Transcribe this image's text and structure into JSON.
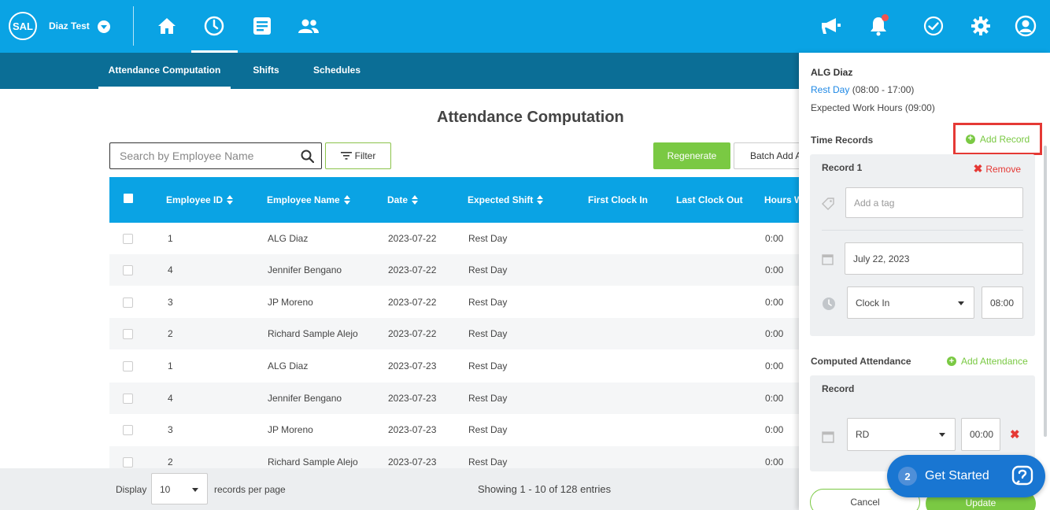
{
  "topbar": {
    "logo": "SAL",
    "company": "Diaz Test",
    "nav_icons": [
      "home-icon",
      "clock-icon",
      "document-icon",
      "people-icon"
    ],
    "right_icons": [
      "megaphone-icon",
      "bell-icon",
      "check-circle-icon",
      "gear-icon",
      "user-icon"
    ]
  },
  "subnav": {
    "tabs": [
      "Attendance Computation",
      "Shifts",
      "Schedules"
    ]
  },
  "main": {
    "title": "Attendance Computation",
    "search_placeholder": "Search by Employee Name",
    "filter_label": "Filter",
    "regenerate_label": "Regenerate",
    "batch_label": "Batch Add A",
    "columns": [
      "Employee ID",
      "Employee Name",
      "Date",
      "Expected Shift",
      "First Clock In",
      "Last Clock Out",
      "Hours W"
    ],
    "rows": [
      {
        "id": "1",
        "name": "ALG Diaz",
        "date": "2023-07-22",
        "shift": "Rest Day",
        "hours": "0:00"
      },
      {
        "id": "4",
        "name": "Jennifer Bengano",
        "date": "2023-07-22",
        "shift": "Rest Day",
        "hours": "0:00"
      },
      {
        "id": "3",
        "name": "JP Moreno",
        "date": "2023-07-22",
        "shift": "Rest Day",
        "hours": "0:00"
      },
      {
        "id": "2",
        "name": "Richard Sample Alejo",
        "date": "2023-07-22",
        "shift": "Rest Day",
        "hours": "0:00"
      },
      {
        "id": "1",
        "name": "ALG Diaz",
        "date": "2023-07-23",
        "shift": "Rest Day",
        "hours": "0:00"
      },
      {
        "id": "4",
        "name": "Jennifer Bengano",
        "date": "2023-07-23",
        "shift": "Rest Day",
        "hours": "0:00"
      },
      {
        "id": "3",
        "name": "JP Moreno",
        "date": "2023-07-23",
        "shift": "Rest Day",
        "hours": "0:00"
      },
      {
        "id": "2",
        "name": "Richard Sample Alejo",
        "date": "2023-07-23",
        "shift": "Rest Day",
        "hours": "0:00"
      }
    ]
  },
  "footer": {
    "display_label": "Display",
    "per_page": "10",
    "per_page_label": "records per page",
    "showing": "Showing 1 - 10 of 128 entries"
  },
  "panel": {
    "employee": "ALG Diaz",
    "shift_link": "Rest Day",
    "shift_time": " (08:00 - 17:00)",
    "expected_hours": "Expected Work Hours (09:00)",
    "time_records_label": "Time Records",
    "add_record_label": "Add Record",
    "record_title": "Record 1",
    "remove_label": "Remove",
    "tag_placeholder": "Add a tag",
    "date_value": "July 22, 2023",
    "clock_type": "Clock In",
    "clock_time": "08:00",
    "computed_label": "Computed Attendance",
    "add_attendance_label": "Add Attendance",
    "record_label": "Record",
    "att_type": "RD",
    "att_time": "00:00",
    "cancel_label": "Cancel",
    "update_label": "Update"
  },
  "widget": {
    "count": "2",
    "label": "Get Started"
  },
  "colors": {
    "primary": "#0aa3e4",
    "subnav": "#0b6e96",
    "accent_green": "#7ac943",
    "danger": "#e53935",
    "link": "#1e88e5"
  }
}
